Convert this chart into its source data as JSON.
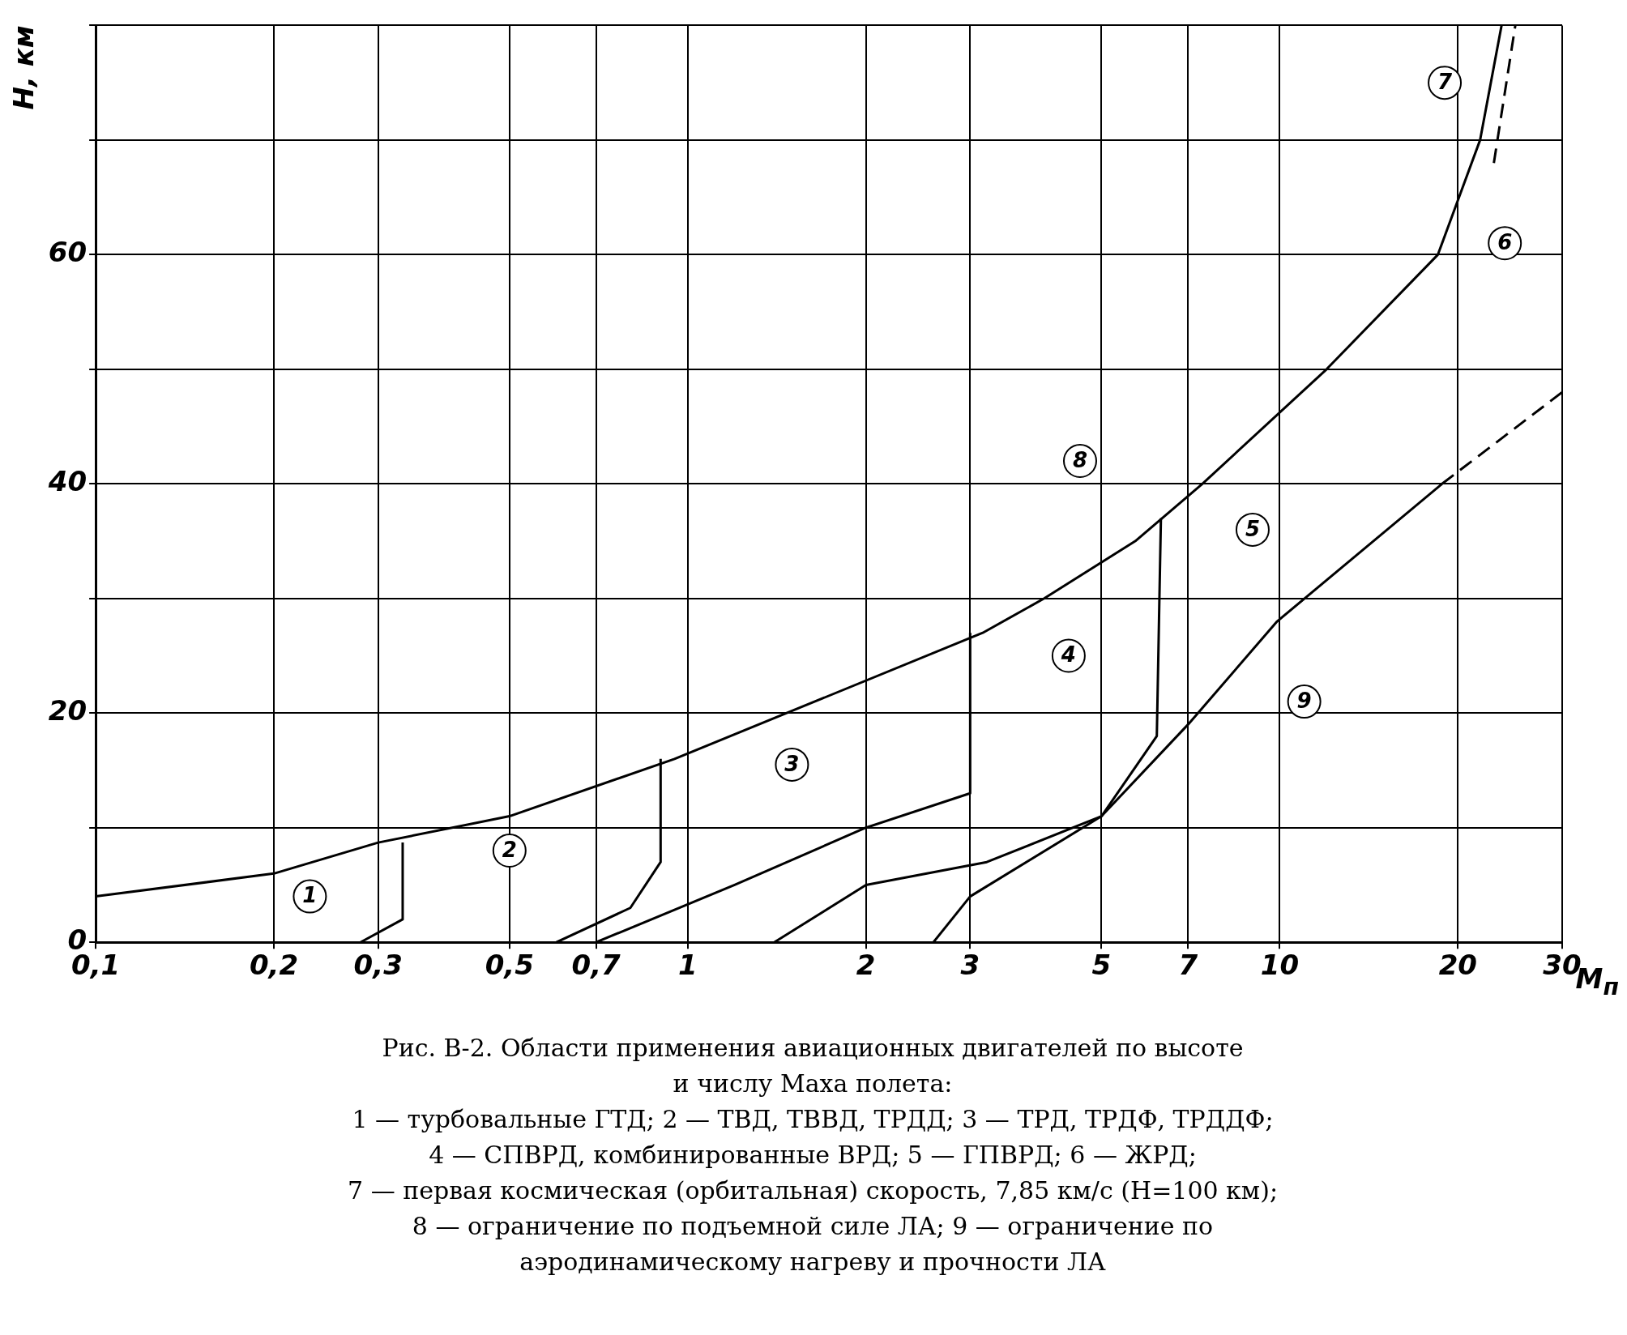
{
  "chart_data": {
    "type": "line",
    "xlabel": "M$_{п}$",
    "ylabel": "H, км",
    "log": "x",
    "xlim": [
      0.1,
      30
    ],
    "xticks": [
      {
        "value": 0.1,
        "label": "0,1"
      },
      {
        "value": 0.2,
        "label": "0,2"
      },
      {
        "value": 0.3,
        "label": "0,3"
      },
      {
        "value": 0.5,
        "label": "0,5"
      },
      {
        "value": 0.7,
        "label": "0,7"
      },
      1,
      2,
      3,
      5,
      7,
      10,
      20,
      30
    ],
    "ylim": [
      0,
      80
    ],
    "yticks": [
      0,
      {
        "value": 10,
        "label": null
      },
      20,
      {
        "value": 30,
        "label": null
      },
      40,
      {
        "value": 50,
        "label": null
      },
      60,
      {
        "value": 70,
        "label": null
      },
      {
        "value": 80,
        "label": null
      }
    ],
    "grid": true,
    "legend": false,
    "marker": "none",
    "series": [
      {
        "color": "#000000",
        "line_style": "solid",
        "x": [
          0.1,
          0.2,
          0.3,
          0.5,
          0.95,
          3.15,
          4.0,
          5.7,
          7.4,
          12,
          18.5,
          21.8,
          23.7
        ],
        "values": [
          4,
          6,
          8.7,
          11,
          16,
          27,
          30,
          35,
          40,
          50,
          60,
          70,
          80
        ]
      },
      {
        "color": "#000000",
        "line_style": "solid",
        "x": [
          2.6,
          3,
          5,
          7,
          9.9,
          18.8
        ],
        "values": [
          0,
          4,
          11,
          19,
          28,
          40
        ]
      },
      {
        "color": "#000000",
        "line_style": "dashed",
        "x": [
          18.8,
          30
        ],
        "values": [
          40,
          48
        ]
      },
      {
        "color": "#000000",
        "line_style": "solid",
        "x": [
          0.28,
          0.33,
          0.33
        ],
        "values": [
          0,
          2,
          8.7
        ]
      },
      {
        "color": "#000000",
        "line_style": "solid",
        "x": [
          0.6,
          0.8,
          0.9,
          0.9
        ],
        "values": [
          0,
          3,
          7,
          16
        ]
      },
      {
        "color": "#000000",
        "line_style": "solid",
        "x": [
          0.7,
          1.2,
          2,
          3,
          3
        ],
        "values": [
          0,
          5,
          10,
          13,
          27
        ]
      },
      {
        "color": "#000000",
        "line_style": "solid",
        "x": [
          1.4,
          2,
          3.2,
          5,
          6.2,
          6.3
        ],
        "values": [
          0,
          5,
          7,
          11,
          18,
          37
        ]
      },
      {
        "color": "#000000",
        "line_style": "dashed",
        "x": [
          23,
          25
        ],
        "values": [
          68,
          80
        ]
      }
    ],
    "annotations": [
      {
        "text": "1",
        "x": 0.23,
        "y": 4
      },
      {
        "text": "2",
        "x": 0.5,
        "y": 8
      },
      {
        "text": "3",
        "x": 1.5,
        "y": 15.5
      },
      {
        "text": "4",
        "x": 4.4,
        "y": 25
      },
      {
        "text": "5",
        "x": 9,
        "y": 36
      },
      {
        "text": "6",
        "x": 24,
        "y": 61
      },
      {
        "text": "7",
        "x": 19,
        "y": 75
      },
      {
        "text": "8",
        "x": 4.6,
        "y": 42
      },
      {
        "text": "9",
        "x": 11,
        "y": 21
      },
      "Рис. В-2. Области применения авиационных двигателей по высоте",
      "и числу Маха полета:",
      "1 — турбовальные ГТД; 2 — ТВД, ТВВД, ТРДД; 3 — ТРД, ТРДФ, ТРДДФ;",
      "4 — СПВРД, комбинированные ВРД; 5 — ГПВРД; 6 — ЖРД;",
      "7 — первая космическая (орбитальная) скорость, 7,85 км/с (H=100 км);",
      "8 — ограничение по подъемной силе ЛА; 9 — ограничение по",
      "аэродинамическому нагреву и прочности ЛА"
    ]
  }
}
